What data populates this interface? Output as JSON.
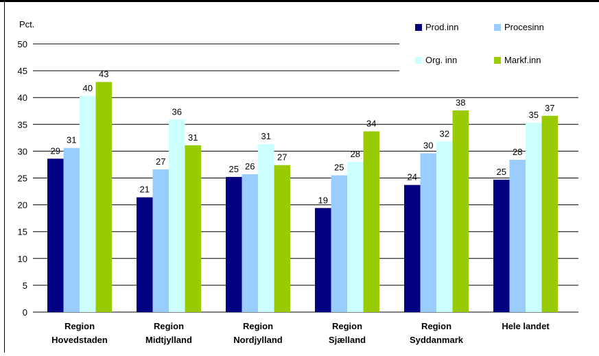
{
  "chart_data": {
    "type": "bar",
    "title": "",
    "ylabel": "Pct.",
    "xlabel": "",
    "ylim": [
      0,
      50
    ],
    "yticks": [
      0,
      5,
      10,
      15,
      20,
      25,
      30,
      35,
      40,
      45,
      50
    ],
    "grid": true,
    "legend_position": "top-right",
    "categories": [
      [
        "Region",
        "Hovedstaden"
      ],
      [
        "Region",
        "Midtjylland"
      ],
      [
        "Region",
        "Nordjylland"
      ],
      [
        "Region",
        "Sjælland"
      ],
      [
        "Region",
        "Syddanmark"
      ],
      [
        "Hele landet"
      ]
    ],
    "series": [
      {
        "name": "Prod.inn",
        "color": "#000080",
        "values": [
          28.6,
          21.4,
          25.2,
          19.4,
          23.7,
          24.7
        ],
        "labels": [
          "29",
          "21",
          "25",
          "19",
          "24",
          "25"
        ]
      },
      {
        "name": "Procesinn",
        "color": "#99ccff",
        "values": [
          30.6,
          26.6,
          25.7,
          25.5,
          29.6,
          28.4
        ],
        "labels": [
          "31",
          "27",
          "26",
          "25",
          "30",
          "28"
        ]
      },
      {
        "name": "Org. inn",
        "color": "#ccffff",
        "values": [
          40.3,
          35.9,
          31.3,
          28.0,
          31.8,
          35.3
        ],
        "labels": [
          "40",
          "36",
          "31",
          "28",
          "32",
          "35"
        ]
      },
      {
        "name": "Markf.inn",
        "color": "#99cc00",
        "values": [
          42.9,
          31.1,
          27.4,
          33.7,
          37.6,
          36.6
        ],
        "labels": [
          "43",
          "31",
          "27",
          "34",
          "38",
          "37"
        ]
      }
    ]
  }
}
